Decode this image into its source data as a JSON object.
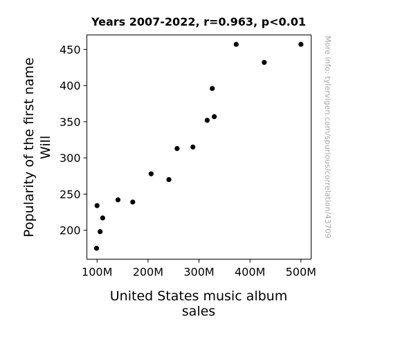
{
  "chart_data": {
    "type": "scatter",
    "title": "Years 2007-2022, r=0.963, p<0.01",
    "xlabel": [
      "United States music album",
      "sales"
    ],
    "ylabel": [
      "Popularity of the first name",
      "Will"
    ],
    "x_ticks": [
      {
        "value": 100,
        "label": "100M"
      },
      {
        "value": 200,
        "label": "200M"
      },
      {
        "value": 300,
        "label": "300M"
      },
      {
        "value": 400,
        "label": "400M"
      },
      {
        "value": 500,
        "label": "500M"
      }
    ],
    "y_ticks": [
      {
        "value": 200,
        "label": "200"
      },
      {
        "value": 250,
        "label": "250"
      },
      {
        "value": 300,
        "label": "300"
      },
      {
        "value": 350,
        "label": "350"
      },
      {
        "value": 400,
        "label": "400"
      },
      {
        "value": 450,
        "label": "450"
      }
    ],
    "xlim": [
      80,
      520
    ],
    "ylim": [
      160,
      470
    ],
    "x_unit": "millions of albums",
    "grid": false,
    "marker_color": "#000000",
    "points": [
      {
        "x": 500,
        "y": 457
      },
      {
        "x": 373,
        "y": 457
      },
      {
        "x": 428,
        "y": 432
      },
      {
        "x": 326,
        "y": 396
      },
      {
        "x": 330,
        "y": 357
      },
      {
        "x": 316,
        "y": 352
      },
      {
        "x": 288,
        "y": 315
      },
      {
        "x": 257,
        "y": 313
      },
      {
        "x": 206,
        "y": 278
      },
      {
        "x": 241,
        "y": 270
      },
      {
        "x": 141,
        "y": 242
      },
      {
        "x": 170,
        "y": 239
      },
      {
        "x": 100,
        "y": 234
      },
      {
        "x": 111,
        "y": 217
      },
      {
        "x": 106,
        "y": 198
      },
      {
        "x": 99,
        "y": 175
      }
    ]
  },
  "watermark": "More info: tylervigen.com/spurious/correlation/43709"
}
